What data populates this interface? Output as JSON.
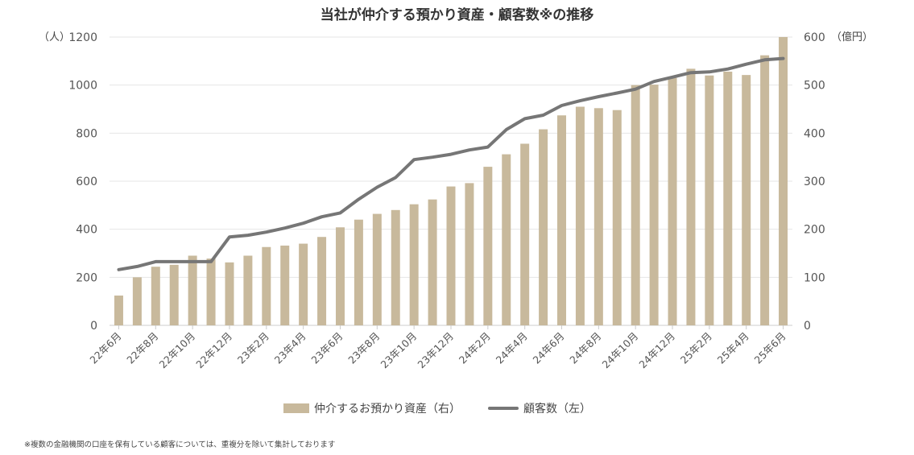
{
  "title": "当社が仲介する預かり資産・顧客数※の推移",
  "footnote": "※複数の金融機関の口座を保有している顧客については、重複分を除いて集計しております",
  "colors": {
    "bar": "#c8b99c",
    "line": "#767676",
    "grid": "#e6e6e6",
    "axis": "#cccccc"
  },
  "chart_data": {
    "type": "bar",
    "categories": [
      "22年6月",
      "22年7月",
      "22年8月",
      "22年9月",
      "22年10月",
      "22年11月",
      "22年12月",
      "23年1月",
      "23年2月",
      "23年3月",
      "23年4月",
      "23年5月",
      "23年6月",
      "23年7月",
      "23年8月",
      "23年9月",
      "23年10月",
      "23年11月",
      "23年12月",
      "24年1月",
      "24年2月",
      "24年3月",
      "24年4月",
      "24年5月",
      "24年6月",
      "24年7月",
      "24年8月",
      "24年9月",
      "24年10月",
      "24年11月",
      "24年12月",
      "25年1月",
      "25年2月",
      "25年3月",
      "25年4月",
      "25年5月",
      "25年6月"
    ],
    "x_tick_labels": [
      "22年6月",
      "22年8月",
      "22年10月",
      "22年12月",
      "23年2月",
      "23年4月",
      "23年6月",
      "23年8月",
      "23年10月",
      "23年12月",
      "24年2月",
      "24年4月",
      "24年6月",
      "24年8月",
      "24年10月",
      "24年12月",
      "25年2月",
      "25年4月",
      "25年6月"
    ],
    "left_axis": {
      "unit": "（人）",
      "ylim": [
        0,
        1200
      ],
      "ticks": [
        "0",
        "200",
        "400",
        "600",
        "800",
        "1000",
        "1200"
      ]
    },
    "right_axis": {
      "unit": "（億円）",
      "ylim": [
        0,
        600
      ],
      "ticks": [
        "0",
        "100",
        "200",
        "300",
        "400",
        "500",
        "600"
      ]
    },
    "grid": true,
    "legend_position": "bottom",
    "series": [
      {
        "name": "仲介するお預かり資産（右）",
        "type": "bar",
        "axis": "right",
        "values": [
          62,
          100,
          122,
          126,
          145,
          139,
          131,
          145,
          163,
          166,
          170,
          184,
          204,
          220,
          232,
          240,
          252,
          262,
          289,
          296,
          330,
          356,
          378,
          408,
          437,
          455,
          452,
          448,
          500,
          501,
          515,
          534,
          520,
          528,
          521,
          562,
          600
        ]
      },
      {
        "name": "顧客数（左）",
        "type": "line",
        "axis": "left",
        "values": [
          232,
          245,
          265,
          265,
          265,
          265,
          368,
          375,
          388,
          405,
          425,
          452,
          468,
          525,
          575,
          615,
          690,
          700,
          712,
          730,
          742,
          815,
          860,
          875,
          915,
          935,
          952,
          967,
          983,
          1015,
          1033,
          1052,
          1055,
          1067,
          1087,
          1105,
          1111
        ]
      }
    ]
  }
}
